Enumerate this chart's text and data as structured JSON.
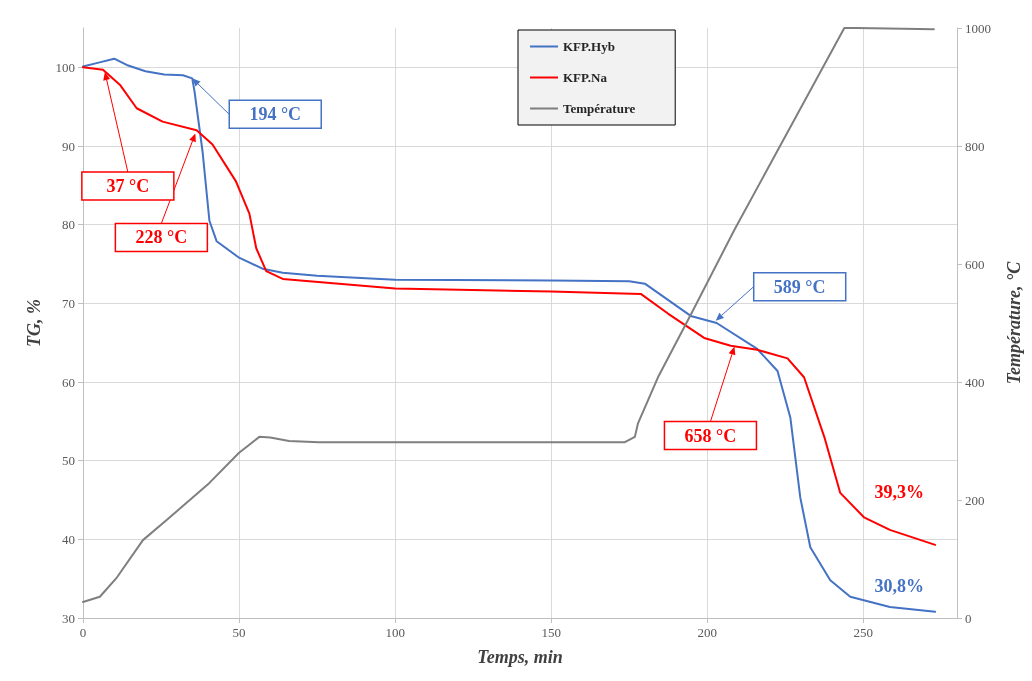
{
  "chart_data": {
    "type": "line",
    "xlabel": "Temps, min",
    "ylabel": "TG, %",
    "y2label": "Température, °C",
    "xlim": [
      0,
      280
    ],
    "xticks": [
      0,
      50,
      100,
      150,
      200,
      250
    ],
    "ylim": [
      30,
      105
    ],
    "yticks": [
      30,
      40,
      50,
      60,
      70,
      80,
      90,
      100
    ],
    "y2lim": [
      0,
      1000
    ],
    "y2ticks": [
      0,
      200,
      400,
      600,
      800,
      1000
    ],
    "grid": true,
    "legend": "top",
    "marker": "none",
    "line_style": "solid",
    "series": [
      {
        "name": "KFP.Hyb",
        "color": "#4472c4",
        "x": [
          0,
          5,
          10,
          14,
          20,
          26,
          32,
          35,
          35.7,
          38.3,
          40.5,
          42.8,
          50,
          57.5,
          64,
          75,
          100,
          150,
          175,
          180,
          194.7,
          203,
          216,
          222.5,
          226.6,
          229.8,
          233,
          239.4,
          245.8,
          258.5,
          273
        ],
        "values": [
          100.1,
          100.6,
          101.1,
          100.3,
          99.5,
          99.1,
          99.0,
          98.6,
          97,
          89.3,
          80.5,
          77.9,
          75.8,
          74.4,
          73.9,
          73.5,
          73.0,
          72.9,
          72.8,
          72.5,
          68.4,
          67.5,
          64.2,
          61.4,
          55.5,
          45.3,
          39,
          34.8,
          32.7,
          31.4,
          30.8
        ]
      },
      {
        "name": "KFP.Na",
        "color": "#ff0000",
        "x": [
          0,
          6.4,
          11.8,
          17.2,
          25.5,
          36.4,
          41.5,
          49,
          53.3,
          55.5,
          58.7,
          64,
          100,
          150,
          178.7,
          187.4,
          199,
          207.5,
          216,
          225.7,
          231,
          237.5,
          242.6,
          250.2,
          258.5,
          273
        ],
        "values": [
          100,
          99.7,
          97.8,
          94.8,
          93.1,
          92,
          90.2,
          85.5,
          81.4,
          77,
          74.1,
          73.1,
          71.9,
          71.5,
          71.2,
          68.7,
          65.6,
          64.6,
          64.1,
          63,
          60.6,
          53,
          45.9,
          42.8,
          41.2,
          39.3
        ]
      },
      {
        "name": "Température",
        "color": "#7f7f7f",
        "axis": "y2",
        "x": [
          0,
          5.4,
          10.9,
          19.2,
          26.8,
          40.5,
          50,
          56.5,
          60,
          66,
          75.6,
          100,
          150,
          173.6,
          176.8,
          177.8,
          184.2,
          194.7,
          208.7,
          243.9,
          248,
          272.6
        ],
        "values": [
          27,
          36,
          69,
          132,
          166,
          229,
          280,
          307,
          306,
          300,
          298,
          298,
          298,
          298,
          307,
          330,
          408,
          514,
          658,
          1000,
          1000,
          998
        ]
      }
    ],
    "annotations": [
      {
        "text": "194 °C",
        "x": 35,
        "y": 98.6
      },
      {
        "text": "37 °C",
        "x": 7,
        "y": 99.4
      },
      {
        "text": "228 °C",
        "x": 36,
        "y": 91.6
      },
      {
        "text": "589 °C",
        "x": 202.7,
        "y": 67.8
      },
      {
        "text": "658 °C",
        "x": 208.7,
        "y": 64.5
      },
      {
        "text": "39,3%",
        "x": 273,
        "y": 39.3
      },
      {
        "text": "30,8%",
        "x": 273,
        "y": 30.8
      }
    ]
  }
}
